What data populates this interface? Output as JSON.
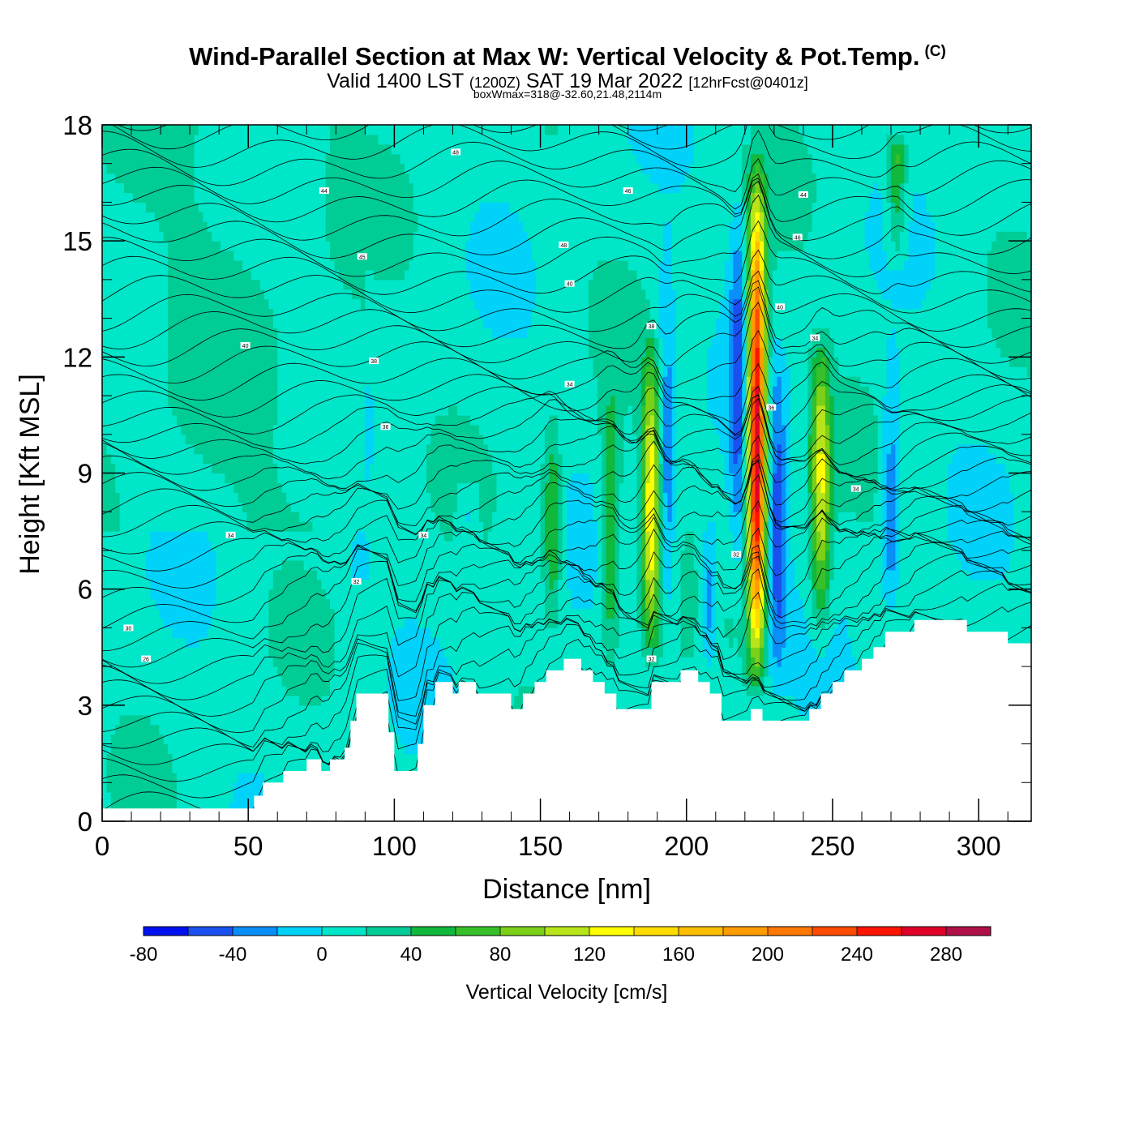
{
  "title": "Wind-Parallel Section at Max W: Vertical Velocity & Pot.Temp.",
  "copyright_mark": "(C)",
  "subtitle_a": "Valid 1400 LST",
  "subtitle_b": "(1200Z)",
  "subtitle_c": "SAT 19 Mar 2022",
  "subtitle_d": "[12hrFcst@0401z]",
  "subtitle2": "boxWmax=318@-32.60,21.48,2114m",
  "chart_data": {
    "type": "heatmap",
    "xlabel": "Distance [nm]",
    "ylabel": "Height [Kft MSL]",
    "xlim": [
      0,
      318
    ],
    "ylim": [
      0,
      18
    ],
    "xticks": [
      "0",
      "50",
      "100",
      "150",
      "200",
      "250",
      "300"
    ],
    "yticks": [
      "0",
      "3",
      "6",
      "9",
      "12",
      "15",
      "18"
    ],
    "colorbar": {
      "label": "Vertical Velocity [cm/s]",
      "ticks": [
        "-80",
        "-40",
        "0",
        "40",
        "80",
        "120",
        "160",
        "200",
        "240",
        "280"
      ],
      "levels": [
        -80,
        -60,
        -40,
        -20,
        0,
        20,
        40,
        60,
        80,
        100,
        120,
        140,
        160,
        180,
        200,
        220,
        240,
        260,
        280,
        300
      ],
      "colors": [
        "#0010f0",
        "#1a50f0",
        "#0a8ef8",
        "#00d2fa",
        "#00e6c8",
        "#00cc96",
        "#10b83c",
        "#38c02a",
        "#7cd018",
        "#b8e41a",
        "#ffff00",
        "#ffdc00",
        "#ffbe00",
        "#ff9c00",
        "#ff7800",
        "#ff4c00",
        "#ff1400",
        "#e00028",
        "#b01048"
      ]
    },
    "background_velocity": 10,
    "velocity_features": [
      {
        "x": 224,
        "z0": 3.0,
        "z1": 17.6,
        "peak": 280,
        "peak_z": 9.8
      },
      {
        "x": 188,
        "z0": 3.8,
        "z1": 13.0,
        "peak": 130,
        "peak_z": 8.0
      },
      {
        "x": 246,
        "z0": 4.2,
        "z1": 13.0,
        "peak": 110,
        "peak_z": 9.0
      },
      {
        "x": 154,
        "z0": 4.6,
        "z1": 11.0,
        "peak": 60,
        "peak_z": 7.6
      },
      {
        "x": 174,
        "z0": 3.4,
        "z1": 12.0,
        "peak": 60,
        "peak_z": 7.5
      },
      {
        "x": 272,
        "z0": 14.0,
        "z1": 18.0,
        "peak": 60,
        "peak_z": 17.0
      },
      {
        "x": 231,
        "z0": 3.0,
        "z1": 13.0,
        "peak": -60,
        "peak_z": 7.0
      },
      {
        "x": 193,
        "z0": 4.0,
        "z1": 16.0,
        "peak": -50,
        "peak_z": 9.0
      },
      {
        "x": 218,
        "z0": 5.0,
        "z1": 17.0,
        "peak": -60,
        "peak_z": 12.0
      },
      {
        "x": 208,
        "z0": 3.5,
        "z1": 8.5,
        "peak": -50,
        "peak_z": 5.5
      },
      {
        "x": 270,
        "z0": 5.0,
        "z1": 13.0,
        "peak": -50,
        "peak_z": 8.0
      },
      {
        "x": 125,
        "z0": 7.0,
        "z1": 9.0,
        "peak": -25,
        "peak_z": 8.0
      },
      {
        "x": 88,
        "z0": 6.0,
        "z1": 7.5,
        "peak": -25,
        "peak_z": 6.8
      }
    ],
    "terrain_profile": {
      "x": [
        0,
        50,
        52,
        55,
        62,
        70,
        75,
        78,
        83,
        85,
        87,
        88,
        92,
        96,
        98,
        100,
        104,
        108,
        110,
        114,
        116,
        120,
        122,
        124,
        128,
        136,
        140,
        144,
        148,
        152,
        158,
        164,
        168,
        172,
        176,
        180,
        186,
        188,
        192,
        196,
        198,
        204,
        208,
        212,
        216,
        222,
        226,
        232,
        236,
        242,
        246,
        250,
        254,
        260,
        264,
        268,
        278,
        288,
        296,
        304,
        310,
        318
      ],
      "z": [
        0.33,
        0.33,
        0.66,
        1.0,
        1.3,
        1.6,
        1.3,
        1.6,
        1.9,
        2.6,
        3.3,
        3.3,
        3.3,
        3.3,
        2.3,
        1.3,
        1.3,
        2.0,
        3.0,
        3.6,
        3.6,
        3.3,
        3.6,
        3.6,
        3.3,
        3.3,
        2.9,
        3.3,
        3.6,
        3.9,
        4.2,
        3.9,
        3.6,
        3.3,
        2.9,
        2.9,
        2.9,
        3.6,
        3.6,
        3.6,
        3.9,
        3.6,
        3.3,
        2.6,
        2.6,
        2.9,
        2.6,
        2.6,
        2.6,
        2.9,
        3.3,
        3.6,
        3.9,
        4.2,
        4.5,
        4.9,
        5.2,
        5.2,
        4.9,
        4.9,
        4.6,
        4.6
      ]
    },
    "theta_labels": [
      {
        "x": 121,
        "z": 17.3,
        "text": "48"
      },
      {
        "x": 76,
        "z": 16.3,
        "text": "44"
      },
      {
        "x": 180,
        "z": 16.3,
        "text": "46"
      },
      {
        "x": 240,
        "z": 16.2,
        "text": "44"
      },
      {
        "x": 158,
        "z": 14.9,
        "text": "48"
      },
      {
        "x": 238,
        "z": 15.1,
        "text": "46"
      },
      {
        "x": 89,
        "z": 14.6,
        "text": "45"
      },
      {
        "x": 160,
        "z": 13.9,
        "text": "40"
      },
      {
        "x": 232,
        "z": 13.3,
        "text": "40"
      },
      {
        "x": 49,
        "z": 12.3,
        "text": "40"
      },
      {
        "x": 188,
        "z": 12.8,
        "text": "38"
      },
      {
        "x": 244,
        "z": 12.5,
        "text": "34"
      },
      {
        "x": 93,
        "z": 11.9,
        "text": "38"
      },
      {
        "x": 160,
        "z": 11.3,
        "text": "34"
      },
      {
        "x": 229,
        "z": 10.7,
        "text": "36"
      },
      {
        "x": 97,
        "z": 10.2,
        "text": "36"
      },
      {
        "x": 258,
        "z": 8.6,
        "text": "34"
      },
      {
        "x": 44,
        "z": 7.4,
        "text": "34"
      },
      {
        "x": 110,
        "z": 7.4,
        "text": "34"
      },
      {
        "x": 217,
        "z": 6.9,
        "text": "32"
      },
      {
        "x": 87,
        "z": 6.2,
        "text": "32"
      },
      {
        "x": 9,
        "z": 5.0,
        "text": "30"
      },
      {
        "x": 15,
        "z": 4.2,
        "text": "26"
      },
      {
        "x": 188,
        "z": 4.2,
        "text": "32"
      }
    ]
  }
}
